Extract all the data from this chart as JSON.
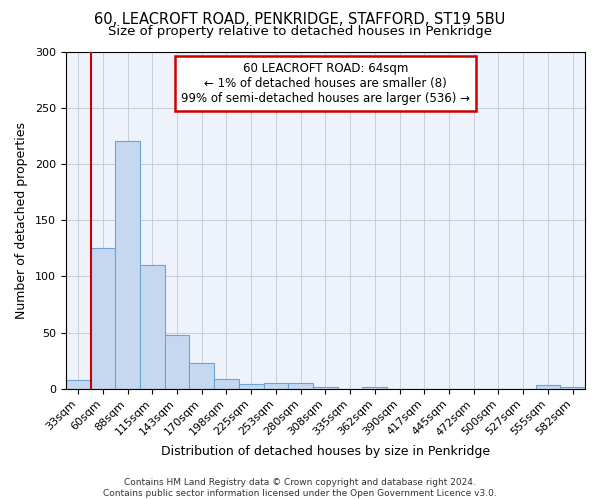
{
  "title1": "60, LEACROFT ROAD, PENKRIDGE, STAFFORD, ST19 5BU",
  "title2": "Size of property relative to detached houses in Penkridge",
  "xlabel": "Distribution of detached houses by size in Penkridge",
  "ylabel": "Number of detached properties",
  "categories": [
    "33sqm",
    "60sqm",
    "88sqm",
    "115sqm",
    "143sqm",
    "170sqm",
    "198sqm",
    "225sqm",
    "253sqm",
    "280sqm",
    "308sqm",
    "335sqm",
    "362sqm",
    "390sqm",
    "417sqm",
    "445sqm",
    "472sqm",
    "500sqm",
    "527sqm",
    "555sqm",
    "582sqm"
  ],
  "values": [
    8,
    125,
    220,
    110,
    48,
    23,
    9,
    4,
    5,
    5,
    2,
    0,
    2,
    0,
    0,
    0,
    0,
    0,
    0,
    3,
    2
  ],
  "bar_color": "#c5d8f0",
  "bar_edge_color": "#6aa3d4",
  "bar_linewidth": 0.8,
  "red_line_x": 1,
  "red_line_color": "#cc0000",
  "annotation_text": "60 LEACROFT ROAD: 64sqm\n← 1% of detached houses are smaller (8)\n99% of semi-detached houses are larger (536) →",
  "annotation_box_color": "#ffffff",
  "annotation_box_edge": "#cc0000",
  "ylim": [
    0,
    300
  ],
  "yticks": [
    0,
    50,
    100,
    150,
    200,
    250,
    300
  ],
  "plot_bg_color": "#eef2fb",
  "background_color": "#ffffff",
  "grid_color": "#c0c8d8",
  "title_fontsize": 10.5,
  "subtitle_fontsize": 9.5,
  "axis_label_fontsize": 9,
  "tick_fontsize": 8,
  "annotation_fontsize": 8.5,
  "footer_fontsize": 6.5
}
